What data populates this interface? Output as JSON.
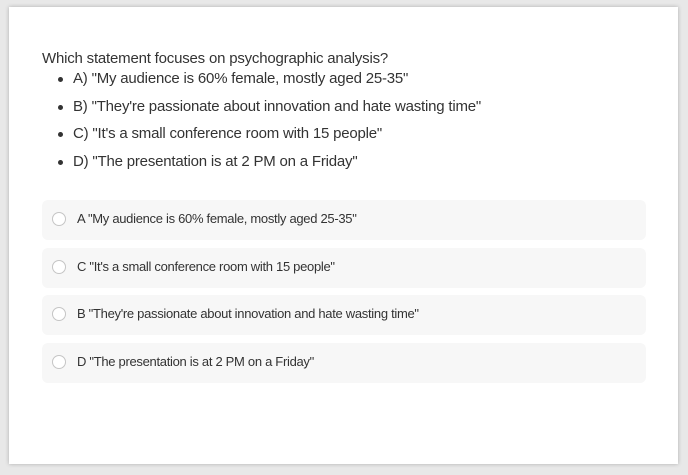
{
  "question": {
    "text": "Which statement focuses on psychographic analysis?",
    "choices": [
      "A) \"My audience is 60% female, mostly aged 25-35\"",
      "B) \"They're passionate about innovation and hate wasting time\"",
      "C) \"It's a small conference room with 15 people\"",
      "D) \"The presentation is at 2 PM on a Friday\""
    ]
  },
  "options": [
    "A \"My audience is 60% female, mostly aged 25-35\"",
    "C \"It's a small conference room with 15 people\"",
    "B \"They're passionate about innovation and hate wasting time\"",
    "D \"The presentation is at 2 PM on a Friday\""
  ]
}
